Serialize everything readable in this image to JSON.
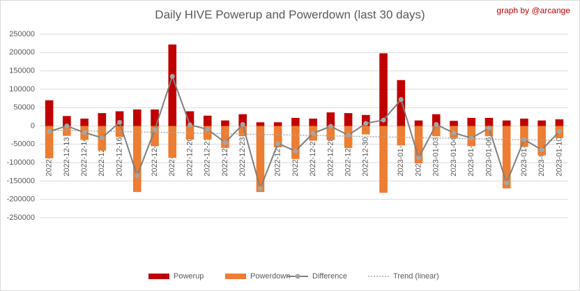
{
  "chart_data": {
    "type": "bar",
    "title": "Daily HIVE Powerup and Powerdown (last 30 days)",
    "annotation": "graph by @arcange",
    "categories": [
      "2022-12-12",
      "2022-12-13",
      "2022-12-14",
      "2022-12-15",
      "2022-12-16",
      "2022-12-17",
      "2022-12-18",
      "2022-12-19",
      "2022-12-20",
      "2022-12-21",
      "2022-12-22",
      "2022-12-23",
      "2022-12-24",
      "2022-12-25",
      "2022-12-26",
      "2022-12-27",
      "2022-12-28",
      "2022-12-29",
      "2022-12-30",
      "2022-12-31",
      "2023-01-01",
      "2023-01-02",
      "2023-01-03",
      "2023-01-04",
      "2023-01-05",
      "2023-01-06",
      "2023-01-07",
      "2023-01-08",
      "2023-01-09",
      "2023-01-10"
    ],
    "series": [
      {
        "name": "Powerup",
        "color": "#c00000",
        "values": [
          70000,
          27000,
          20000,
          35000,
          40000,
          45000,
          45000,
          222000,
          40000,
          28000,
          15000,
          32000,
          10000,
          10000,
          22000,
          20000,
          37000,
          35000,
          30000,
          198000,
          125000,
          15000,
          32000,
          14000,
          22000,
          22000,
          15000,
          20000,
          15000,
          18000
        ]
      },
      {
        "name": "Powerdown",
        "color": "#ed7d31",
        "values": [
          -88000,
          -27000,
          -38000,
          -67000,
          -30000,
          -180000,
          -55000,
          -87000,
          -37000,
          -37000,
          -60000,
          -28000,
          -180000,
          -58000,
          -90000,
          -40000,
          -38000,
          -60000,
          -23000,
          -182000,
          -53000,
          -102000,
          -28000,
          -33000,
          -55000,
          -28000,
          -170000,
          -57000,
          -80000,
          -33000
        ]
      },
      {
        "name": "Difference",
        "color": "#7f7f7f",
        "marker_color": "#a5a5a5",
        "values": [
          -15000,
          0,
          -18000,
          -32000,
          10000,
          -135000,
          -10000,
          135000,
          3000,
          -9000,
          -45000,
          4000,
          -170000,
          -48000,
          -68000,
          -20000,
          -1000,
          -25000,
          7000,
          16000,
          72000,
          -87000,
          4000,
          -19000,
          -33000,
          -6000,
          -155000,
          -37000,
          -65000,
          -15000
        ]
      },
      {
        "name": "Trend (linear)",
        "color": "#a6a6a6",
        "trend_of": "Difference"
      }
    ],
    "ylim": [
      -250000,
      250000
    ],
    "yticks": [
      -250000,
      -200000,
      -150000,
      -100000,
      -50000,
      0,
      50000,
      100000,
      150000,
      200000,
      250000
    ],
    "grid": true,
    "legend": "bottom"
  }
}
